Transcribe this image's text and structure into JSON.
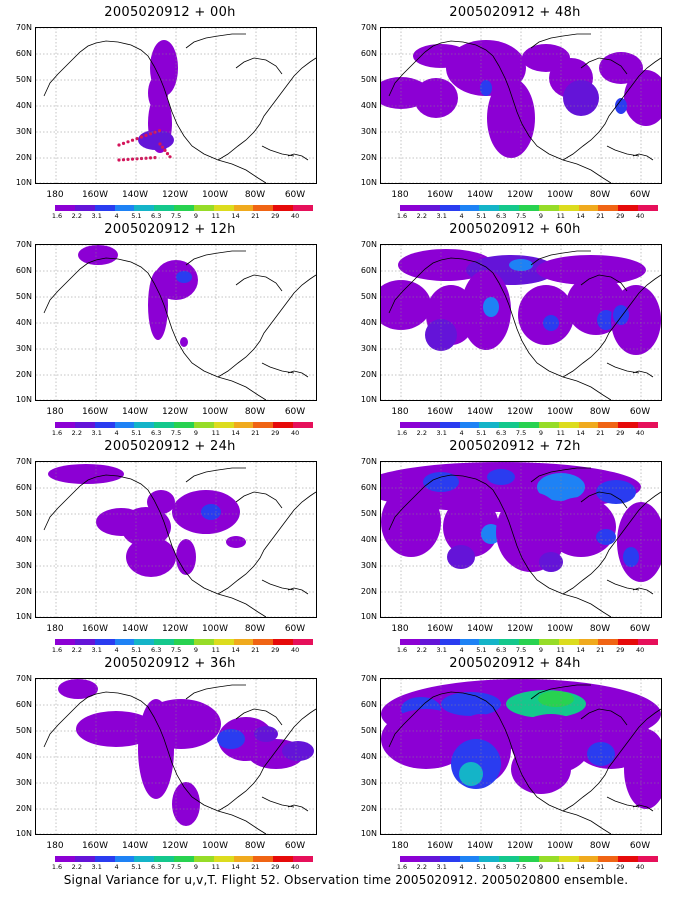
{
  "caption": "Signal Variance for u,v,T. Flight 52. Observation time 2005020912. 2005020800 ensemble.",
  "lat_labels": [
    "70N",
    "60N",
    "50N",
    "40N",
    "30N",
    "20N",
    "10N"
  ],
  "lon_labels": [
    "180",
    "160W",
    "140W",
    "120W",
    "100W",
    "80W",
    "60W"
  ],
  "colorbar": {
    "colors": [
      "#8c00d4",
      "#6414d8",
      "#2a3cf0",
      "#1e82f5",
      "#14b4c8",
      "#14c88c",
      "#28d250",
      "#96dc28",
      "#dcdc1e",
      "#f0aa1e",
      "#f06414",
      "#e60a0a",
      "#e6105a"
    ],
    "labels": [
      "1.6",
      "2.2",
      "3.1",
      "4",
      "5.1",
      "6.3",
      "7.5",
      "9",
      "11",
      "14",
      "21",
      "29",
      "40"
    ]
  },
  "panels": [
    {
      "title": "2005020912 + 00h"
    },
    {
      "title": "2005020912 + 48h"
    },
    {
      "title": "2005020912 + 12h"
    },
    {
      "title": "2005020912 + 60h"
    },
    {
      "title": "2005020912 + 24h"
    },
    {
      "title": "2005020912 + 72h"
    },
    {
      "title": "2005020912 + 36h"
    },
    {
      "title": "2005020912 + 84h"
    }
  ]
}
